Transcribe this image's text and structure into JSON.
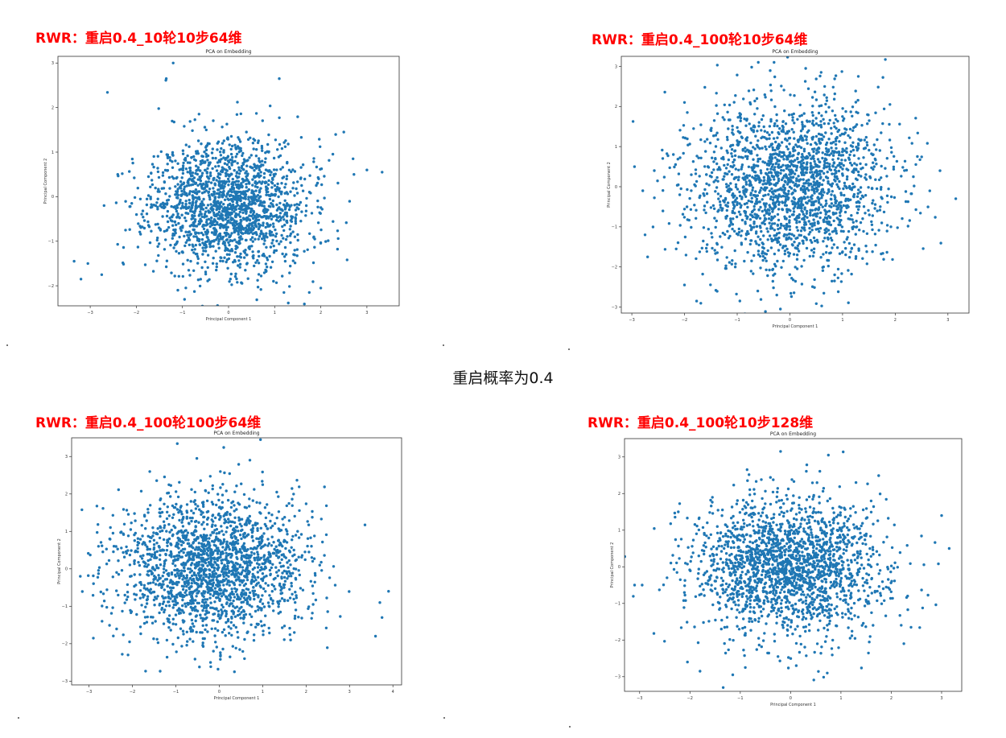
{
  "page": {
    "caption": "重启概率为0.4"
  },
  "colors": {
    "title": "#ff0000",
    "points": "#1f77b4"
  },
  "chart_data": [
    {
      "type": "scatter",
      "panel_title": "RWR：重启0.4_10轮10步64维",
      "title": "PCA on Embedding",
      "xlabel": "Principal Component 1",
      "ylabel": "Principal Component 2",
      "xlim": [
        -3.7,
        3.7
      ],
      "ylim": [
        -2.45,
        3.15
      ],
      "xticks": [
        -3,
        -2,
        -1,
        0,
        1,
        2,
        3
      ],
      "yticks": [
        -2,
        -1,
        0,
        1,
        2,
        3
      ],
      "n_points": 1800,
      "distribution": {
        "center": [
          0.0,
          -0.2
        ],
        "spread": [
          0.85,
          0.75
        ],
        "seed": 11
      },
      "points": [
        [
          3.33,
          0.55
        ],
        [
          3.0,
          0.6
        ],
        [
          2.72,
          0.5
        ],
        [
          2.7,
          0.85
        ],
        [
          2.5,
          1.45
        ],
        [
          -3.35,
          -1.45
        ],
        [
          -3.2,
          -1.85
        ],
        [
          -3.05,
          -1.5
        ],
        [
          -2.75,
          -1.75
        ],
        [
          -2.7,
          -0.2
        ],
        [
          -1.2,
          3.0
        ],
        [
          -1.35,
          2.65
        ],
        [
          1.1,
          2.65
        ],
        [
          -1.1,
          -2.1
        ],
        [
          1.75,
          -2.15
        ],
        [
          2.0,
          -2.05
        ],
        [
          1.2,
          -2.15
        ]
      ]
    },
    {
      "type": "scatter",
      "panel_title": "RWR：重启0.4_100轮10步64维",
      "title": "PCA on Embedding",
      "xlabel": "Principal Component 1",
      "ylabel": "Principal Component 2",
      "xlim": [
        -3.2,
        3.4
      ],
      "ylim": [
        -3.15,
        3.25
      ],
      "xticks": [
        -3,
        -2,
        -1,
        0,
        1,
        2,
        3
      ],
      "yticks": [
        -3,
        -2,
        -1,
        0,
        1,
        2,
        3
      ],
      "n_points": 2000,
      "distribution": {
        "center": [
          0.0,
          0.0
        ],
        "spread": [
          0.95,
          1.05
        ],
        "seed": 23
      },
      "points": [
        [
          -2.95,
          0.5
        ],
        [
          -2.75,
          -1.2
        ],
        [
          -2.7,
          -1.75
        ],
        [
          3.15,
          -0.3
        ],
        [
          2.85,
          0.4
        ],
        [
          -0.95,
          -2.85
        ],
        [
          -0.6,
          3.1
        ],
        [
          -0.3,
          3.1
        ],
        [
          0.3,
          2.95
        ],
        [
          1.9,
          2.05
        ],
        [
          -2.0,
          -2.45
        ],
        [
          -2.0,
          2.1
        ],
        [
          1.3,
          2.75
        ]
      ]
    },
    {
      "type": "scatter",
      "panel_title": "RWR：重启0.4_100轮100步64维",
      "title": "PCA on Embedding",
      "xlabel": "Principal Component 1",
      "ylabel": "Principal Component 2",
      "xlim": [
        -3.4,
        4.2
      ],
      "ylim": [
        -3.1,
        3.5
      ],
      "xticks": [
        -3,
        -2,
        -1,
        0,
        1,
        2,
        3,
        4
      ],
      "yticks": [
        -3,
        -2,
        -1,
        0,
        1,
        2,
        3
      ],
      "n_points": 2000,
      "distribution": {
        "center": [
          -0.2,
          0.05
        ],
        "spread": [
          1.05,
          0.95
        ],
        "seed": 37
      },
      "points": [
        [
          3.9,
          -0.6
        ],
        [
          3.7,
          -0.9
        ],
        [
          3.75,
          -1.3
        ],
        [
          3.6,
          -1.8
        ],
        [
          -3.2,
          -0.2
        ],
        [
          -2.9,
          -1.85
        ],
        [
          -2.7,
          -1.4
        ],
        [
          0.95,
          3.45
        ],
        [
          0.35,
          -2.75
        ],
        [
          -0.2,
          -2.5
        ],
        [
          -2.1,
          -2.3
        ],
        [
          -1.6,
          2.6
        ]
      ]
    },
    {
      "type": "scatter",
      "panel_title": "RWR：重启0.4_100轮10步128维",
      "title": "PCA on Embedding",
      "xlabel": "Principal Component 1",
      "ylabel": "Principal Component 2",
      "xlim": [
        -3.3,
        3.4
      ],
      "ylim": [
        -3.4,
        3.5
      ],
      "xticks": [
        -3,
        -2,
        -1,
        0,
        1,
        2,
        3
      ],
      "yticks": [
        -3,
        -2,
        -1,
        0,
        1,
        2,
        3
      ],
      "n_points": 2000,
      "distribution": {
        "center": [
          0.0,
          0.0
        ],
        "spread": [
          0.95,
          0.95
        ],
        "seed": 53
      },
      "points": [
        [
          -3.1,
          -0.5
        ],
        [
          -2.95,
          -0.5
        ],
        [
          3.15,
          0.5
        ],
        [
          3.0,
          1.4
        ],
        [
          -1.15,
          -2.95
        ],
        [
          -0.9,
          -2.75
        ],
        [
          -0.2,
          3.15
        ],
        [
          0.75,
          3.05
        ],
        [
          2.25,
          -2.1
        ],
        [
          -1.8,
          -2.85
        ],
        [
          -2.05,
          -2.6
        ],
        [
          1.6,
          1.8
        ]
      ]
    }
  ]
}
